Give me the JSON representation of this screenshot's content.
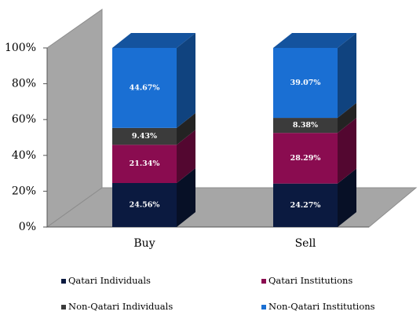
{
  "chart_data": {
    "type": "bar3d-stacked",
    "categories": [
      "Buy",
      "Sell"
    ],
    "series": [
      {
        "name": "Qatari Individuals",
        "color": "#0b1a40",
        "values": [
          24.56,
          24.27
        ],
        "value_labels": [
          "24.56%",
          "24.27%"
        ]
      },
      {
        "name": "Qatari Institutions",
        "color": "#8a0c50",
        "values": [
          21.34,
          28.29
        ],
        "value_labels": [
          "21.34%",
          "28.29%"
        ]
      },
      {
        "name": "Non-Qatari Individuals",
        "color": "#3b3b3b",
        "values": [
          9.43,
          8.38
        ],
        "value_labels": [
          "9.43%",
          "8.38%"
        ]
      },
      {
        "name": "Non-Qatari Institutions",
        "color": "#1a6fd3",
        "values": [
          44.67,
          39.07
        ],
        "value_labels": [
          "44.67%",
          "39.07%"
        ]
      }
    ],
    "ylim": [
      0,
      100
    ],
    "yticks": [
      {
        "value": 0,
        "label": "0%"
      },
      {
        "value": 20,
        "label": "20%"
      },
      {
        "value": 40,
        "label": "40%"
      },
      {
        "value": 60,
        "label": "60%"
      },
      {
        "value": 80,
        "label": "80%"
      },
      {
        "value": 100,
        "label": "100%"
      }
    ]
  }
}
